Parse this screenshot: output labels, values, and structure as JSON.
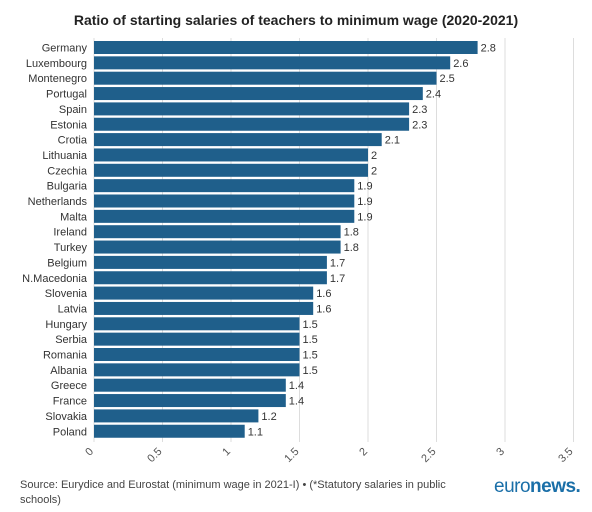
{
  "chart_data": {
    "type": "bar",
    "orientation": "horizontal",
    "title": "Ratio of starting salaries of teachers to minimum wage (2020-2021)",
    "categories": [
      "Germany",
      "Luxembourg",
      "Montenegro",
      "Portugal",
      "Spain",
      "Estonia",
      "Crotia",
      "Lithuania",
      "Czechia",
      "Bulgaria",
      "Netherlands",
      "Malta",
      "Ireland",
      "Turkey",
      "Belgium",
      "N.Macedonia",
      "Slovenia",
      "Latvia",
      "Hungary",
      "Serbia",
      "Romania",
      "Albania",
      "Greece",
      "France",
      "Slovakia",
      "Poland"
    ],
    "values": [
      2.8,
      2.6,
      2.5,
      2.4,
      2.3,
      2.3,
      2.1,
      2,
      2,
      1.9,
      1.9,
      1.9,
      1.8,
      1.8,
      1.7,
      1.7,
      1.6,
      1.6,
      1.5,
      1.5,
      1.5,
      1.5,
      1.4,
      1.4,
      1.2,
      1.1
    ],
    "value_labels": [
      "2.8",
      "2.6",
      "2.5",
      "2.4",
      "2.3",
      "2.3",
      "2.1",
      "2",
      "2",
      "1.9",
      "1.9",
      "1.9",
      "1.8",
      "1.8",
      "1.7",
      "1.7",
      "1.6",
      "1.6",
      "1.5",
      "1.5",
      "1.5",
      "1.5",
      "1.4",
      "1.4",
      "1.2",
      "1.1"
    ],
    "x_ticks": [
      "0",
      "0.5",
      "1",
      "1.5",
      "2",
      "2.5",
      "3",
      "3.5"
    ],
    "xlim": [
      0,
      3.5
    ],
    "grid": true,
    "bar_color": "#1f5f8b"
  },
  "footer": {
    "source": "Source: Eurydice and Eurostat (minimum wage in 2021-I) • (*Statutory salaries in public schools)",
    "logo_part1": "euro",
    "logo_part2": "news."
  }
}
